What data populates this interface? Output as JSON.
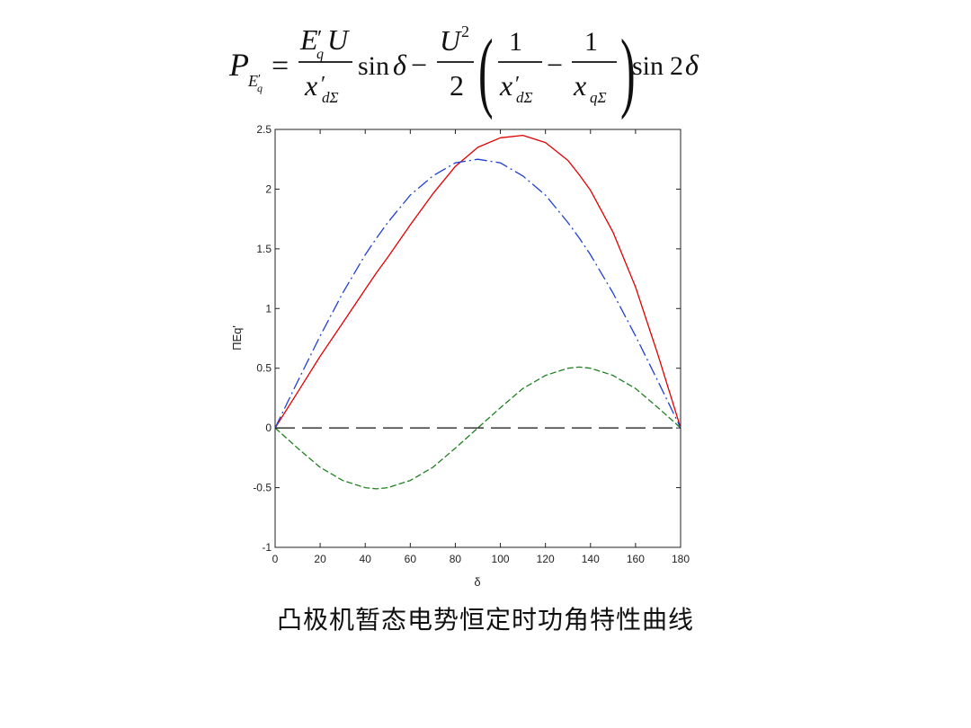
{
  "formula": {
    "lhs_P": "P",
    "lhs_sub_E": "E",
    "lhs_sub_prime": "′",
    "lhs_sub_q": "q",
    "equals": "=",
    "t1_num_E": "E",
    "t1_num_prime": "′",
    "t1_num_q": "q",
    "t1_num_U": "U",
    "t1_den_x": "x",
    "t1_den_prime": "′",
    "t1_den_sub": "dΣ",
    "sin1": "sin",
    "delta1": "δ",
    "minus": "−",
    "t2_num_U": "U",
    "t2_num_sup": "2",
    "t2_den": "2",
    "paren_open": "(",
    "p1_num": "1",
    "p1_den_x": "x",
    "p1_den_prime": "′",
    "p1_den_sub": "dΣ",
    "minus2": "−",
    "p2_num": "1",
    "p2_den_x": "x",
    "p2_den_sub": "qΣ",
    "paren_close": ")",
    "sin2": "sin",
    "two": "2",
    "delta2": "δ"
  },
  "caption": "凸极机暂态电势恒定时功角特性曲线",
  "chart_data": {
    "type": "line",
    "xlabel": "δ",
    "ylabel": "ΠEq'",
    "xlim": [
      0,
      180
    ],
    "ylim": [
      -1,
      2.5
    ],
    "xticks": [
      "0",
      "20",
      "40",
      "60",
      "80",
      "100",
      "120",
      "140",
      "160",
      "180"
    ],
    "yticks": [
      "-1",
      "-0.5",
      "0",
      "0.5",
      "1",
      "1.5",
      "2",
      "2.5"
    ],
    "xtick_values": [
      0,
      20,
      40,
      60,
      80,
      100,
      120,
      140,
      160,
      180
    ],
    "ytick_values": [
      -1,
      -0.5,
      0,
      0.5,
      1,
      1.5,
      2,
      2.5
    ],
    "x": [
      0,
      10,
      20,
      30,
      40,
      45,
      50,
      60,
      70,
      80,
      90,
      100,
      110,
      120,
      130,
      135,
      140,
      150,
      160,
      170,
      180
    ],
    "series": [
      {
        "color": "#e00000",
        "style": "solid",
        "values": [
          0,
          0.3,
          0.6,
          0.88,
          1.16,
          1.3,
          1.43,
          1.7,
          1.96,
          2.19,
          2.35,
          2.43,
          2.45,
          2.39,
          2.24,
          2.12,
          1.99,
          1.64,
          1.18,
          0.61,
          0
        ]
      },
      {
        "color": "#2040d0",
        "style": "dashdot",
        "values": [
          0,
          0.39,
          0.77,
          1.13,
          1.45,
          1.59,
          1.72,
          1.95,
          2.11,
          2.22,
          2.25,
          2.22,
          2.11,
          1.95,
          1.72,
          1.59,
          1.45,
          1.13,
          0.77,
          0.39,
          0
        ]
      },
      {
        "color": "#208020",
        "style": "dashed",
        "values": [
          0,
          -0.17,
          -0.33,
          -0.44,
          -0.5,
          -0.51,
          -0.5,
          -0.44,
          -0.33,
          -0.17,
          0,
          0.17,
          0.33,
          0.44,
          0.5,
          0.51,
          0.5,
          0.44,
          0.33,
          0.17,
          0
        ]
      },
      {
        "color": "#111111",
        "style": "longdash",
        "values": [
          0,
          0,
          0,
          0,
          0,
          0,
          0,
          0,
          0,
          0,
          0,
          0,
          0,
          0,
          0,
          0,
          0,
          0,
          0,
          0,
          0
        ]
      }
    ]
  }
}
